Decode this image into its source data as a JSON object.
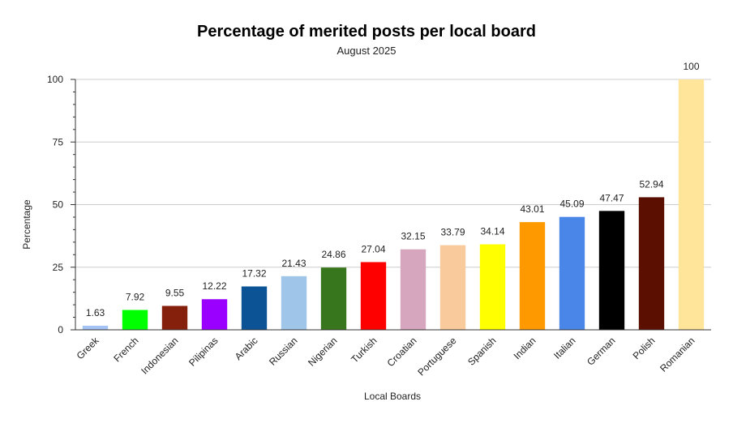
{
  "chart_data": {
    "type": "bar",
    "title": "Percentage of merited posts per local board",
    "subtitle": "August 2025",
    "xlabel": "Local Boards",
    "ylabel": "Percentage",
    "ylim": [
      0,
      100
    ],
    "yticks": [
      0,
      25,
      50,
      75,
      100
    ],
    "grid": true,
    "categories": [
      "Greek",
      "French",
      "Indonesian",
      "Pilipinas",
      "Arabic",
      "Russian",
      "Nigerian",
      "Turkish",
      "Croatian",
      "Portuguese",
      "Spanish",
      "Indian",
      "Italian",
      "German",
      "Polish",
      "Romanian"
    ],
    "values": [
      1.63,
      7.92,
      9.55,
      12.22,
      17.32,
      21.43,
      24.86,
      27.04,
      32.15,
      33.79,
      34.14,
      43.01,
      45.09,
      47.47,
      52.94,
      100
    ],
    "value_labels": [
      "1.63",
      "7.92",
      "9.55",
      "12.22",
      "17.32",
      "21.43",
      "24.86",
      "27.04",
      "32.15",
      "33.79",
      "34.14",
      "43.01",
      "45.09",
      "47.47",
      "52.94",
      "100"
    ],
    "colors": [
      "#a4c2f4",
      "#00ff00",
      "#85200c",
      "#9900ff",
      "#0b5394",
      "#9fc5e8",
      "#38761d",
      "#ff0000",
      "#d5a6bd",
      "#f9cb9c",
      "#ffff00",
      "#ff9900",
      "#4a86e8",
      "#000000",
      "#5b0f00",
      "#ffe599"
    ]
  }
}
